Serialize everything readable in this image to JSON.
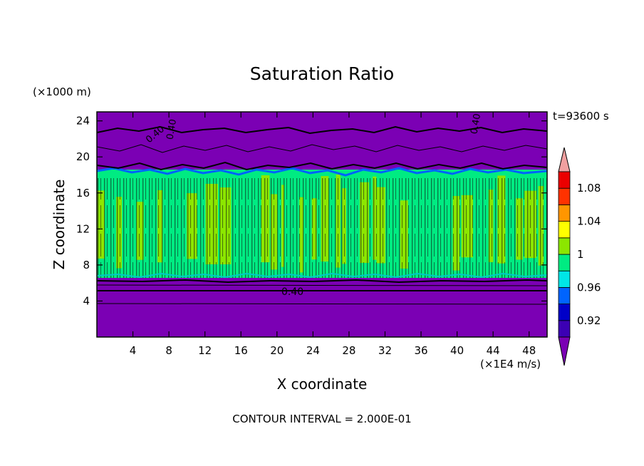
{
  "chart_data": {
    "type": "heatmap",
    "title": "Saturation Ratio",
    "xlabel": "X coordinate",
    "ylabel": "Z coordinate",
    "x_unit": "(×1E4 m/s)",
    "y_unit": "(×1000 m)",
    "time_label": "t=93600 s",
    "contour_interval_label": "CONTOUR INTERVAL = 2.000E-01",
    "contour_labels": [
      "0.40",
      "0.40",
      "0.40",
      "0.40"
    ],
    "xlim": [
      0,
      50
    ],
    "ylim": [
      0,
      25
    ],
    "xticks": [
      4,
      8,
      12,
      16,
      20,
      24,
      28,
      32,
      36,
      40,
      44,
      48
    ],
    "yticks": [
      4,
      8,
      12,
      16,
      20,
      24
    ],
    "colorbar": {
      "levels": [
        0.9,
        0.92,
        0.94,
        0.96,
        0.98,
        1.0,
        1.02,
        1.04,
        1.06,
        1.08,
        1.1
      ],
      "tick_labels": [
        "0.92",
        "0.96",
        "1",
        "1.04",
        "1.08"
      ],
      "tick_values": [
        0.92,
        0.96,
        1.0,
        1.04,
        1.08
      ],
      "colors": [
        "#7b00b4",
        "#3c00b4",
        "#0000c8",
        "#0064ff",
        "#00e6e6",
        "#00eb82",
        "#8ce600",
        "#ffff00",
        "#ff9600",
        "#ff3200",
        "#eb0000",
        "#f0a0a0"
      ]
    },
    "regions": [
      {
        "z_range": [
          0,
          6.5
        ],
        "value": "<0.90"
      },
      {
        "z_range": [
          6.5,
          18
        ],
        "value": "0.98-1.02"
      },
      {
        "z_range": [
          18,
          25
        ],
        "value": "<0.90"
      }
    ]
  }
}
